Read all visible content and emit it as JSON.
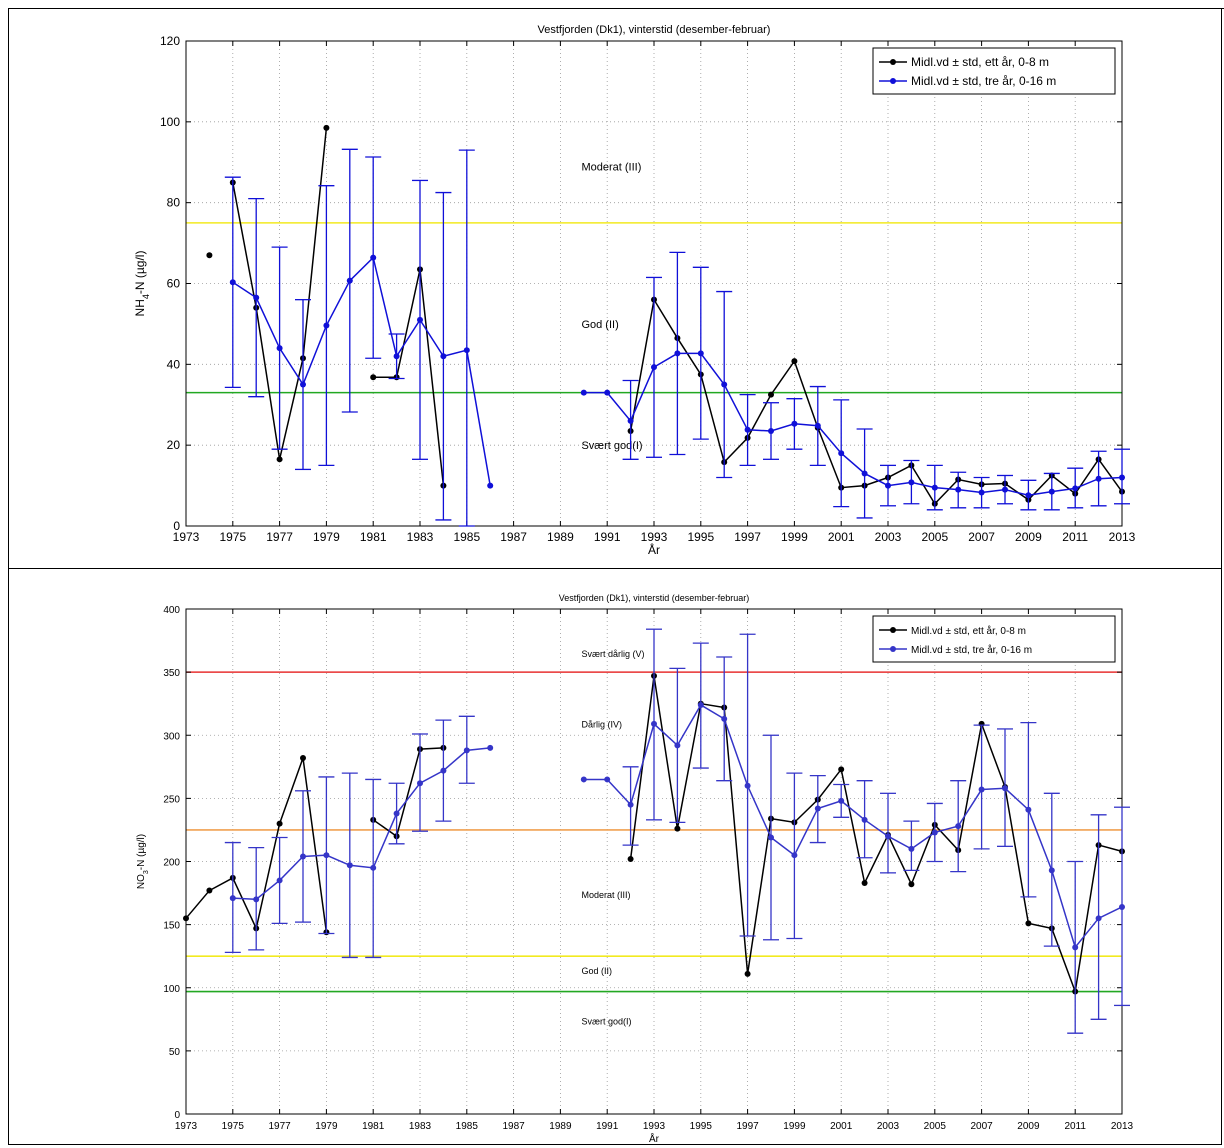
{
  "chart_data": [
    {
      "type": "line",
      "title": "Vestfjorden (Dk1), vinterstid (desember-februar)",
      "xlabel": "År",
      "ylabel": "NH4-N (µg/l)",
      "ylabel_main": "NH",
      "ylabel_sub": "4",
      "ylabel_rest": "-N (µg/l)",
      "xlim": [
        1973,
        2013
      ],
      "ylim": [
        0,
        120
      ],
      "xticks": [
        1973,
        1975,
        1977,
        1979,
        1981,
        1983,
        1985,
        1987,
        1989,
        1991,
        1993,
        1995,
        1997,
        1999,
        2001,
        2003,
        2005,
        2007,
        2009,
        2011,
        2013
      ],
      "yticks": [
        0,
        20,
        40,
        60,
        80,
        100,
        120
      ],
      "grid": true,
      "legend_position": "top-right",
      "thresholds": [
        {
          "value": 75,
          "color": "#f2ea20"
        },
        {
          "value": 33,
          "color": "#22a822"
        }
      ],
      "class_labels": [
        {
          "text": "Moderat (III)",
          "x": 1989.9,
          "y": 88
        },
        {
          "text": "God (II)",
          "x": 1989.9,
          "y": 49
        },
        {
          "text": "Svært god(I)",
          "x": 1989.9,
          "y": 19
        }
      ],
      "series": [
        {
          "name": "Midl.vd ± std, ett år, 0-8 m",
          "color": "#000000",
          "segments": [
            [
              [
                1974,
                67
              ]
            ],
            [
              [
                1975,
                85
              ],
              [
                1976,
                54
              ],
              [
                1977,
                16.5
              ],
              [
                1978,
                41.5
              ],
              [
                1979,
                98.5
              ]
            ],
            [
              [
                1981,
                36.8
              ],
              [
                1982,
                36.8
              ],
              [
                1983,
                63.5
              ],
              [
                1984,
                10
              ]
            ],
            [
              [
                1992,
                23.5
              ],
              [
                1993,
                56
              ],
              [
                1994,
                46.5
              ],
              [
                1995,
                37.5
              ],
              [
                1996,
                15.8
              ],
              [
                1997,
                21.8
              ],
              [
                1998,
                32.5
              ],
              [
                1999,
                40.8
              ],
              [
                2000,
                24.3
              ],
              [
                2001,
                9.5
              ],
              [
                2002,
                10
              ],
              [
                2003,
                12
              ],
              [
                2004,
                15
              ],
              [
                2005,
                5.5
              ],
              [
                2006,
                11.5
              ],
              [
                2007,
                10.3
              ],
              [
                2008,
                10.5
              ],
              [
                2009,
                6.5
              ],
              [
                2010,
                12.5
              ],
              [
                2011,
                8
              ],
              [
                2012,
                16.5
              ],
              [
                2013,
                8.5
              ]
            ]
          ]
        },
        {
          "name": "Midl.vd ± std, tre år, 0-16 m",
          "color": "#1010d8",
          "segments": [
            [
              [
                1975,
                60.3,
                34.3,
                86.3
              ],
              [
                1976,
                56.5,
                32,
                81
              ],
              [
                1977,
                44,
                19,
                69
              ],
              [
                1978,
                35,
                14,
                56
              ],
              [
                1979,
                49.6,
                15,
                84.2
              ],
              [
                1980,
                60.7,
                28.2,
                93.2
              ],
              [
                1981,
                66.4,
                41.5,
                91.3
              ],
              [
                1982,
                42,
                36.5,
                47.5
              ],
              [
                1983,
                51,
                16.5,
                85.5
              ],
              [
                1984,
                42,
                1.5,
                82.5
              ],
              [
                1985,
                43.5,
                0,
                93
              ],
              [
                1986,
                10,
                10,
                10
              ]
            ],
            [
              [
                1990,
                33,
                33,
                33
              ],
              [
                1991,
                33,
                33,
                33
              ],
              [
                1992,
                26,
                16.5,
                36
              ],
              [
                1993,
                39.3,
                17,
                61.5
              ],
              [
                1994,
                42.7,
                17.7,
                67.7
              ],
              [
                1995,
                42.7,
                21.5,
                64
              ],
              [
                1996,
                35,
                12,
                58
              ],
              [
                1997,
                23.8,
                15,
                32.5
              ],
              [
                1998,
                23.5,
                16.5,
                30.5
              ],
              [
                1999,
                25.3,
                19,
                31.5
              ],
              [
                2000,
                24.8,
                15,
                34.5
              ],
              [
                2001,
                18,
                4.8,
                31.2
              ],
              [
                2002,
                13,
                2,
                24
              ],
              [
                2003,
                10,
                5,
                15
              ],
              [
                2004,
                10.8,
                5.5,
                16.2
              ],
              [
                2005,
                9.5,
                4,
                15
              ],
              [
                2006,
                9,
                4.5,
                13.3
              ],
              [
                2007,
                8.3,
                4.5,
                12
              ],
              [
                2008,
                9,
                5.5,
                12.5
              ],
              [
                2009,
                7.6,
                4,
                11.3
              ],
              [
                2010,
                8.5,
                4,
                13
              ],
              [
                2011,
                9.3,
                4.5,
                14.3
              ],
              [
                2012,
                11.7,
                5,
                18.5
              ],
              [
                2013,
                12,
                5.5,
                19
              ]
            ]
          ]
        }
      ]
    },
    {
      "type": "line",
      "title": "Vestfjorden (Dk1), vinterstid (desember-februar)",
      "xlabel": "År",
      "ylabel": "NO3-N (µg/l)",
      "ylabel_main": "NO",
      "ylabel_sub": "3",
      "ylabel_rest": "-N (µg/l)",
      "xlim": [
        1973,
        2013
      ],
      "ylim": [
        0,
        400
      ],
      "xticks": [
        1973,
        1975,
        1977,
        1979,
        1981,
        1983,
        1985,
        1987,
        1989,
        1991,
        1993,
        1995,
        1997,
        1999,
        2001,
        2003,
        2005,
        2007,
        2009,
        2011,
        2013
      ],
      "yticks": [
        0,
        50,
        100,
        150,
        200,
        250,
        300,
        350,
        400
      ],
      "grid": true,
      "legend_position": "top-right",
      "thresholds": [
        {
          "value": 350,
          "color": "#e83030"
        },
        {
          "value": 225,
          "color": "#f0a050"
        },
        {
          "value": 125,
          "color": "#f2ea20"
        },
        {
          "value": 97,
          "color": "#22a822"
        }
      ],
      "class_labels": [
        {
          "text": "Svært dårlig (V)",
          "x": 1989.9,
          "y": 362
        },
        {
          "text": "Dårlig (IV)",
          "x": 1989.9,
          "y": 306
        },
        {
          "text": "Moderat (III)",
          "x": 1989.9,
          "y": 171
        },
        {
          "text": "God (II)",
          "x": 1989.9,
          "y": 111
        },
        {
          "text": "Svært god(I)",
          "x": 1989.9,
          "y": 71
        }
      ],
      "series": [
        {
          "name": "Midl.vd ± std, ett år, 0-8 m",
          "color": "#000000",
          "segments": [
            [
              [
                1973,
                155
              ],
              [
                1974,
                177
              ],
              [
                1975,
                187
              ],
              [
                1976,
                147
              ],
              [
                1977,
                230
              ],
              [
                1978,
                282
              ],
              [
                1979,
                144
              ]
            ],
            [
              [
                1981,
                233
              ],
              [
                1982,
                220
              ],
              [
                1983,
                289
              ],
              [
                1984,
                290
              ]
            ],
            [
              [
                1992,
                202
              ],
              [
                1993,
                347
              ],
              [
                1994,
                226
              ],
              [
                1995,
                325
              ],
              [
                1996,
                322
              ],
              [
                1997,
                111
              ],
              [
                1998,
                234
              ],
              [
                1999,
                231
              ],
              [
                2000,
                249
              ],
              [
                2001,
                273
              ],
              [
                2002,
                183
              ],
              [
                2003,
                221
              ],
              [
                2004,
                182
              ],
              [
                2005,
                229
              ],
              [
                2006,
                209
              ],
              [
                2007,
                309
              ],
              [
                2008,
                259
              ],
              [
                2009,
                151
              ],
              [
                2010,
                147
              ],
              [
                2011,
                97
              ],
              [
                2012,
                213
              ],
              [
                2013,
                208
              ]
            ]
          ]
        },
        {
          "name": "Midl.vd ± std, tre år, 0-16 m",
          "color": "#3535c8",
          "segments": [
            [
              [
                1975,
                171,
                128,
                215
              ],
              [
                1976,
                170,
                130,
                211
              ],
              [
                1977,
                185,
                151,
                219
              ],
              [
                1978,
                204,
                152,
                256
              ],
              [
                1979,
                205,
                143,
                267
              ],
              [
                1980,
                197,
                124,
                270
              ],
              [
                1981,
                195,
                124,
                265
              ],
              [
                1982,
                238,
                214,
                262
              ],
              [
                1983,
                262,
                224,
                301
              ],
              [
                1984,
                272,
                232,
                312
              ],
              [
                1985,
                288,
                262,
                315
              ],
              [
                1986,
                290,
                290,
                290
              ]
            ],
            [
              [
                1990,
                265,
                265,
                265
              ],
              [
                1991,
                265,
                265,
                265
              ],
              [
                1992,
                245,
                213,
                275
              ],
              [
                1993,
                309,
                233,
                384
              ],
              [
                1994,
                292,
                231,
                353
              ],
              [
                1995,
                324,
                274,
                373
              ],
              [
                1996,
                313,
                264,
                362
              ],
              [
                1997,
                260,
                141,
                380
              ],
              [
                1998,
                219,
                138,
                300
              ],
              [
                1999,
                205,
                139,
                270
              ],
              [
                2000,
                242,
                215,
                268
              ],
              [
                2001,
                248,
                235,
                261
              ],
              [
                2002,
                233,
                203,
                264
              ],
              [
                2003,
                220,
                191,
                254
              ],
              [
                2004,
                210,
                193,
                232
              ],
              [
                2005,
                223,
                200,
                246
              ],
              [
                2006,
                228,
                192,
                264
              ],
              [
                2007,
                257,
                210,
                308
              ],
              [
                2008,
                258,
                212,
                305
              ],
              [
                2009,
                241,
                172,
                310
              ],
              [
                2010,
                193,
                133,
                254
              ],
              [
                2011,
                132,
                64,
                200
              ],
              [
                2012,
                155,
                75,
                237
              ],
              [
                2013,
                164,
                86,
                243
              ]
            ]
          ]
        }
      ]
    }
  ]
}
